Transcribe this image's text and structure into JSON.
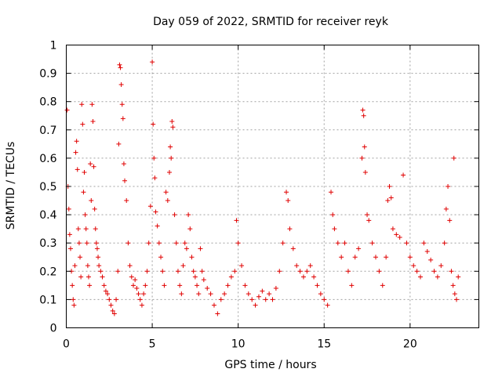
{
  "chart_data": {
    "type": "scatter",
    "title": "Day 059 of 2022, SRMTID for receiver reyk",
    "xlabel": "GPS time / hours",
    "ylabel": "SRMTID / TECUs",
    "xlim": [
      0,
      24
    ],
    "ylim": [
      0,
      1
    ],
    "xticks": [
      0,
      5,
      10,
      15,
      20
    ],
    "xtick_labels": [
      "0",
      "5",
      "10",
      "15",
      "20"
    ],
    "yticks": [
      0,
      0.1,
      0.2,
      0.3,
      0.4,
      0.5,
      0.6,
      0.7,
      0.8,
      0.9,
      1
    ],
    "ytick_labels": [
      "0",
      "0.1",
      "0.2",
      "0.3",
      "0.4",
      "0.5",
      "0.6",
      "0.7",
      "0.8",
      "0.9",
      "1"
    ],
    "grid": true,
    "marker": "+",
    "series": [
      {
        "name": "SRMTID",
        "color": "#e00000",
        "points": [
          [
            0.05,
            0.77
          ],
          [
            0.1,
            0.5
          ],
          [
            0.15,
            0.42
          ],
          [
            0.2,
            0.33
          ],
          [
            0.25,
            0.28
          ],
          [
            0.3,
            0.2
          ],
          [
            0.35,
            0.15
          ],
          [
            0.4,
            0.1
          ],
          [
            0.45,
            0.08
          ],
          [
            0.5,
            0.22
          ],
          [
            0.55,
            0.62
          ],
          [
            0.6,
            0.66
          ],
          [
            0.65,
            0.56
          ],
          [
            0.7,
            0.35
          ],
          [
            0.75,
            0.3
          ],
          [
            0.8,
            0.25
          ],
          [
            0.85,
            0.18
          ],
          [
            0.9,
            0.79
          ],
          [
            0.95,
            0.72
          ],
          [
            1.0,
            0.48
          ],
          [
            1.05,
            0.55
          ],
          [
            1.1,
            0.4
          ],
          [
            1.15,
            0.35
          ],
          [
            1.2,
            0.3
          ],
          [
            1.25,
            0.22
          ],
          [
            1.3,
            0.18
          ],
          [
            1.35,
            0.15
          ],
          [
            1.4,
            0.58
          ],
          [
            1.45,
            0.45
          ],
          [
            1.5,
            0.79
          ],
          [
            1.55,
            0.73
          ],
          [
            1.6,
            0.57
          ],
          [
            1.65,
            0.42
          ],
          [
            1.7,
            0.35
          ],
          [
            1.75,
            0.3
          ],
          [
            1.8,
            0.28
          ],
          [
            1.85,
            0.25
          ],
          [
            1.9,
            0.22
          ],
          [
            2.0,
            0.2
          ],
          [
            2.1,
            0.18
          ],
          [
            2.2,
            0.15
          ],
          [
            2.3,
            0.13
          ],
          [
            2.4,
            0.12
          ],
          [
            2.5,
            0.1
          ],
          [
            2.6,
            0.08
          ],
          [
            2.7,
            0.06
          ],
          [
            2.8,
            0.05
          ],
          [
            2.9,
            0.1
          ],
          [
            3.0,
            0.2
          ],
          [
            3.05,
            0.65
          ],
          [
            3.1,
            0.93
          ],
          [
            3.15,
            0.92
          ],
          [
            3.2,
            0.86
          ],
          [
            3.25,
            0.79
          ],
          [
            3.3,
            0.74
          ],
          [
            3.35,
            0.58
          ],
          [
            3.4,
            0.52
          ],
          [
            3.5,
            0.45
          ],
          [
            3.6,
            0.3
          ],
          [
            3.7,
            0.22
          ],
          [
            3.8,
            0.18
          ],
          [
            3.9,
            0.15
          ],
          [
            4.0,
            0.17
          ],
          [
            4.1,
            0.14
          ],
          [
            4.2,
            0.12
          ],
          [
            4.3,
            0.1
          ],
          [
            4.4,
            0.08
          ],
          [
            4.5,
            0.12
          ],
          [
            4.6,
            0.15
          ],
          [
            4.7,
            0.2
          ],
          [
            4.8,
            0.3
          ],
          [
            4.9,
            0.43
          ],
          [
            5.0,
            0.94
          ],
          [
            5.05,
            0.72
          ],
          [
            5.1,
            0.6
          ],
          [
            5.15,
            0.53
          ],
          [
            5.2,
            0.41
          ],
          [
            5.3,
            0.36
          ],
          [
            5.4,
            0.3
          ],
          [
            5.5,
            0.25
          ],
          [
            5.6,
            0.2
          ],
          [
            5.7,
            0.15
          ],
          [
            5.8,
            0.48
          ],
          [
            5.9,
            0.45
          ],
          [
            6.0,
            0.55
          ],
          [
            6.05,
            0.64
          ],
          [
            6.1,
            0.6
          ],
          [
            6.15,
            0.73
          ],
          [
            6.2,
            0.71
          ],
          [
            6.3,
            0.4
          ],
          [
            6.4,
            0.3
          ],
          [
            6.5,
            0.2
          ],
          [
            6.6,
            0.15
          ],
          [
            6.7,
            0.12
          ],
          [
            6.8,
            0.22
          ],
          [
            6.9,
            0.3
          ],
          [
            7.0,
            0.28
          ],
          [
            7.1,
            0.4
          ],
          [
            7.2,
            0.35
          ],
          [
            7.3,
            0.25
          ],
          [
            7.4,
            0.2
          ],
          [
            7.5,
            0.18
          ],
          [
            7.6,
            0.15
          ],
          [
            7.7,
            0.12
          ],
          [
            7.8,
            0.28
          ],
          [
            7.9,
            0.2
          ],
          [
            8.0,
            0.17
          ],
          [
            8.2,
            0.14
          ],
          [
            8.4,
            0.12
          ],
          [
            8.6,
            0.08
          ],
          [
            8.8,
            0.05
          ],
          [
            9.0,
            0.1
          ],
          [
            9.2,
            0.12
          ],
          [
            9.4,
            0.15
          ],
          [
            9.6,
            0.18
          ],
          [
            9.8,
            0.2
          ],
          [
            9.9,
            0.38
          ],
          [
            10.0,
            0.3
          ],
          [
            10.2,
            0.22
          ],
          [
            10.4,
            0.15
          ],
          [
            10.6,
            0.12
          ],
          [
            10.8,
            0.1
          ],
          [
            11.0,
            0.08
          ],
          [
            11.2,
            0.11
          ],
          [
            11.4,
            0.13
          ],
          [
            11.6,
            0.1
          ],
          [
            11.8,
            0.12
          ],
          [
            12.0,
            0.1
          ],
          [
            12.2,
            0.14
          ],
          [
            12.4,
            0.2
          ],
          [
            12.6,
            0.3
          ],
          [
            12.8,
            0.48
          ],
          [
            12.9,
            0.45
          ],
          [
            13.0,
            0.35
          ],
          [
            13.2,
            0.28
          ],
          [
            13.4,
            0.22
          ],
          [
            13.6,
            0.2
          ],
          [
            13.8,
            0.18
          ],
          [
            14.0,
            0.2
          ],
          [
            14.2,
            0.22
          ],
          [
            14.4,
            0.18
          ],
          [
            14.6,
            0.15
          ],
          [
            14.8,
            0.12
          ],
          [
            15.0,
            0.1
          ],
          [
            15.2,
            0.08
          ],
          [
            15.4,
            0.48
          ],
          [
            15.5,
            0.4
          ],
          [
            15.6,
            0.35
          ],
          [
            15.8,
            0.3
          ],
          [
            16.0,
            0.25
          ],
          [
            16.2,
            0.3
          ],
          [
            16.4,
            0.2
          ],
          [
            16.6,
            0.15
          ],
          [
            16.8,
            0.25
          ],
          [
            17.0,
            0.28
          ],
          [
            17.2,
            0.6
          ],
          [
            17.25,
            0.77
          ],
          [
            17.3,
            0.75
          ],
          [
            17.35,
            0.64
          ],
          [
            17.4,
            0.55
          ],
          [
            17.5,
            0.4
          ],
          [
            17.6,
            0.38
          ],
          [
            17.8,
            0.3
          ],
          [
            18.0,
            0.25
          ],
          [
            18.2,
            0.2
          ],
          [
            18.4,
            0.15
          ],
          [
            18.6,
            0.25
          ],
          [
            18.7,
            0.45
          ],
          [
            18.8,
            0.5
          ],
          [
            18.9,
            0.46
          ],
          [
            19.0,
            0.35
          ],
          [
            19.2,
            0.33
          ],
          [
            19.4,
            0.32
          ],
          [
            19.6,
            0.54
          ],
          [
            19.8,
            0.3
          ],
          [
            20.0,
            0.25
          ],
          [
            20.2,
            0.22
          ],
          [
            20.4,
            0.2
          ],
          [
            20.6,
            0.18
          ],
          [
            20.8,
            0.3
          ],
          [
            21.0,
            0.27
          ],
          [
            21.2,
            0.24
          ],
          [
            21.4,
            0.2
          ],
          [
            21.6,
            0.18
          ],
          [
            21.8,
            0.22
          ],
          [
            22.0,
            0.3
          ],
          [
            22.1,
            0.42
          ],
          [
            22.2,
            0.5
          ],
          [
            22.3,
            0.38
          ],
          [
            22.4,
            0.2
          ],
          [
            22.5,
            0.15
          ],
          [
            22.55,
            0.6
          ],
          [
            22.6,
            0.12
          ],
          [
            22.7,
            0.1
          ],
          [
            22.8,
            0.18
          ]
        ]
      }
    ]
  }
}
